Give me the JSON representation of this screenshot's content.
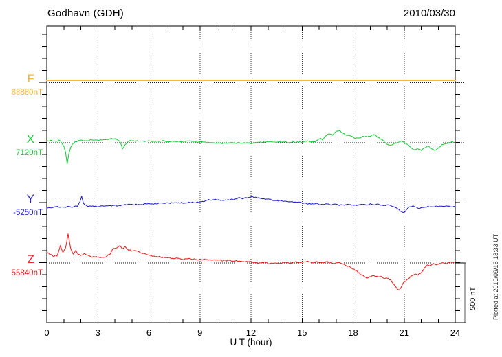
{
  "header": {
    "title": "Godhavn (GDH)",
    "date": "2010/03/30"
  },
  "axes": {
    "xlabel": "U T (hour)",
    "x_ticks": [
      0,
      3,
      6,
      9,
      12,
      15,
      18,
      21,
      24
    ],
    "x_minor_step_hours": 1
  },
  "scalebar": {
    "label": "500 nT",
    "value_nT": 500
  },
  "footer": {
    "plotted_at": "Plotted at 2010/09/16 13:33 UT"
  },
  "chart_data": {
    "type": "line",
    "title": "Godhavn (GDH)",
    "date": "2010/03/30",
    "xlabel": "U T (hour)",
    "x_range": [
      0,
      24
    ],
    "x_ticks": [
      0,
      3,
      6,
      9,
      12,
      15,
      18,
      21,
      24
    ],
    "grid": "dotted vertical at 3h intervals, dotted horizontal baseline per component",
    "legend_position": "left margin labels",
    "scale_bar_nT": 500,
    "minor_tick_nT": 100,
    "series": [
      {
        "name": "F",
        "baseline_label": "88880nT",
        "color": "#FFB832",
        "noise_nT": 0,
        "width": 2,
        "points": [
          [
            0,
            17
          ],
          [
            24,
            17
          ]
        ]
      },
      {
        "name": "X",
        "baseline_label": "7120nT",
        "color": "#20CC40",
        "noise_nT": 6,
        "width": 1.1,
        "points": [
          [
            0,
            8
          ],
          [
            0.3,
            14
          ],
          [
            0.5,
            6
          ],
          [
            0.7,
            20
          ],
          [
            0.85,
            0
          ],
          [
            1.0,
            -30
          ],
          [
            1.1,
            -80
          ],
          [
            1.2,
            -180
          ],
          [
            1.3,
            -90
          ],
          [
            1.4,
            -40
          ],
          [
            1.5,
            -14
          ],
          [
            1.7,
            6
          ],
          [
            2.0,
            17
          ],
          [
            2.3,
            12
          ],
          [
            2.6,
            20
          ],
          [
            3.0,
            17
          ],
          [
            3.3,
            23
          ],
          [
            3.6,
            28
          ],
          [
            3.9,
            32
          ],
          [
            4.1,
            26
          ],
          [
            4.3,
            10
          ],
          [
            4.45,
            -54
          ],
          [
            4.6,
            -20
          ],
          [
            4.8,
            11
          ],
          [
            5.0,
            14
          ],
          [
            5.3,
            10
          ],
          [
            5.6,
            9
          ],
          [
            6.0,
            12
          ],
          [
            6.4,
            8
          ],
          [
            6.8,
            10
          ],
          [
            7.2,
            5
          ],
          [
            7.6,
            8
          ],
          [
            8.0,
            10
          ],
          [
            8.4,
            12
          ],
          [
            8.8,
            6
          ],
          [
            9.2,
            2
          ],
          [
            9.6,
            -2
          ],
          [
            10.0,
            -5
          ],
          [
            10.4,
            -7
          ],
          [
            10.8,
            -4
          ],
          [
            11.2,
            -6
          ],
          [
            11.6,
            -2
          ],
          [
            12.0,
            -4
          ],
          [
            12.4,
            0
          ],
          [
            12.8,
            4
          ],
          [
            13.2,
            8
          ],
          [
            13.5,
            2
          ],
          [
            13.8,
            5
          ],
          [
            14.2,
            1
          ],
          [
            14.6,
            3
          ],
          [
            15.0,
            4
          ],
          [
            15.3,
            16
          ],
          [
            15.5,
            4
          ],
          [
            15.8,
            10
          ],
          [
            16.0,
            35
          ],
          [
            16.2,
            25
          ],
          [
            16.4,
            55
          ],
          [
            16.6,
            75
          ],
          [
            16.8,
            62
          ],
          [
            17.0,
            88
          ],
          [
            17.2,
            100
          ],
          [
            17.4,
            78
          ],
          [
            17.6,
            60
          ],
          [
            17.8,
            55
          ],
          [
            18.0,
            45
          ],
          [
            18.2,
            33
          ],
          [
            18.4,
            40
          ],
          [
            18.6,
            50
          ],
          [
            18.8,
            45
          ],
          [
            19.0,
            55
          ],
          [
            19.2,
            66
          ],
          [
            19.4,
            48
          ],
          [
            19.6,
            30
          ],
          [
            19.8,
            8
          ],
          [
            20.0,
            -12
          ],
          [
            20.2,
            -24
          ],
          [
            20.4,
            -12
          ],
          [
            20.6,
            -2
          ],
          [
            20.8,
            10
          ],
          [
            21.0,
            -2
          ],
          [
            21.2,
            -18
          ],
          [
            21.4,
            -42
          ],
          [
            21.6,
            -62
          ],
          [
            21.8,
            -55
          ],
          [
            22.0,
            -68
          ],
          [
            22.2,
            -45
          ],
          [
            22.4,
            -28
          ],
          [
            22.6,
            -50
          ],
          [
            22.8,
            -68
          ],
          [
            23.0,
            -45
          ],
          [
            23.2,
            -22
          ],
          [
            23.5,
            -10
          ],
          [
            23.8,
            5
          ],
          [
            24,
            2
          ]
        ]
      },
      {
        "name": "Y",
        "baseline_label": "-5250nT",
        "color": "#2525CF",
        "noise_nT": 6,
        "width": 1.1,
        "points": [
          [
            0,
            -46
          ],
          [
            0.3,
            -40
          ],
          [
            0.6,
            -36
          ],
          [
            0.9,
            -40
          ],
          [
            1.2,
            -33
          ],
          [
            1.5,
            -38
          ],
          [
            1.8,
            -32
          ],
          [
            1.95,
            5
          ],
          [
            2.05,
            52
          ],
          [
            2.15,
            -5
          ],
          [
            2.3,
            -25
          ],
          [
            2.5,
            -33
          ],
          [
            2.8,
            -28
          ],
          [
            3.1,
            -32
          ],
          [
            3.4,
            -26
          ],
          [
            3.7,
            -29
          ],
          [
            4.0,
            -22
          ],
          [
            4.3,
            -25
          ],
          [
            4.6,
            -18
          ],
          [
            5.0,
            -15
          ],
          [
            5.4,
            -18
          ],
          [
            5.8,
            -12
          ],
          [
            6.2,
            -10
          ],
          [
            6.6,
            -7
          ],
          [
            7.0,
            -4
          ],
          [
            7.5,
            -1
          ],
          [
            8.0,
            -4
          ],
          [
            8.5,
            0
          ],
          [
            9.0,
            3
          ],
          [
            9.3,
            10
          ],
          [
            9.5,
            22
          ],
          [
            9.7,
            15
          ],
          [
            9.9,
            27
          ],
          [
            10.1,
            21
          ],
          [
            10.4,
            16
          ],
          [
            10.7,
            22
          ],
          [
            11.0,
            28
          ],
          [
            11.3,
            38
          ],
          [
            11.5,
            32
          ],
          [
            11.8,
            42
          ],
          [
            12.0,
            48
          ],
          [
            12.3,
            40
          ],
          [
            12.6,
            34
          ],
          [
            13.0,
            27
          ],
          [
            13.4,
            20
          ],
          [
            13.7,
            14
          ],
          [
            14.0,
            10
          ],
          [
            14.4,
            5
          ],
          [
            14.9,
            0
          ],
          [
            15.2,
            -8
          ],
          [
            15.5,
            -14
          ],
          [
            15.8,
            -8
          ],
          [
            16.1,
            -18
          ],
          [
            16.4,
            -12
          ],
          [
            16.7,
            -20
          ],
          [
            17.0,
            -15
          ],
          [
            17.4,
            -22
          ],
          [
            17.8,
            -16
          ],
          [
            18.2,
            -22
          ],
          [
            18.5,
            -14
          ],
          [
            18.8,
            -20
          ],
          [
            19.0,
            -12
          ],
          [
            19.2,
            -20
          ],
          [
            19.4,
            -10
          ],
          [
            19.6,
            -20
          ],
          [
            19.8,
            -26
          ],
          [
            20.0,
            -20
          ],
          [
            20.3,
            -30
          ],
          [
            20.6,
            -48
          ],
          [
            20.8,
            -72
          ],
          [
            21.0,
            -86
          ],
          [
            21.15,
            -60
          ],
          [
            21.3,
            -38
          ],
          [
            21.5,
            -28
          ],
          [
            21.7,
            -38
          ],
          [
            21.9,
            -48
          ],
          [
            22.1,
            -42
          ],
          [
            22.4,
            -32
          ],
          [
            22.7,
            -38
          ],
          [
            23.0,
            -32
          ],
          [
            23.3,
            -27
          ],
          [
            23.6,
            -33
          ],
          [
            24,
            -32
          ]
        ]
      },
      {
        "name": "Z",
        "baseline_label": "55840nT",
        "color": "#EE2525",
        "noise_nT": 7,
        "width": 1.1,
        "points": [
          [
            0,
            88
          ],
          [
            0.2,
            70
          ],
          [
            0.4,
            52
          ],
          [
            0.6,
            60
          ],
          [
            0.8,
            140
          ],
          [
            0.95,
            85
          ],
          [
            1.1,
            120
          ],
          [
            1.25,
            237
          ],
          [
            1.4,
            120
          ],
          [
            1.55,
            75
          ],
          [
            1.7,
            100
          ],
          [
            1.85,
            70
          ],
          [
            2.0,
            57
          ],
          [
            2.2,
            75
          ],
          [
            2.4,
            60
          ],
          [
            2.7,
            48
          ],
          [
            3.0,
            46
          ],
          [
            3.3,
            40
          ],
          [
            3.5,
            48
          ],
          [
            3.7,
            70
          ],
          [
            3.9,
            115
          ],
          [
            4.1,
            125
          ],
          [
            4.3,
            137
          ],
          [
            4.45,
            120
          ],
          [
            4.6,
            130
          ],
          [
            4.8,
            105
          ],
          [
            5.0,
            100
          ],
          [
            5.3,
            95
          ],
          [
            5.6,
            80
          ],
          [
            5.9,
            65
          ],
          [
            6.2,
            57
          ],
          [
            6.5,
            50
          ],
          [
            6.8,
            46
          ],
          [
            7.1,
            40
          ],
          [
            7.4,
            37
          ],
          [
            7.7,
            34
          ],
          [
            8.0,
            30
          ],
          [
            8.3,
            34
          ],
          [
            8.6,
            28
          ],
          [
            9.0,
            25
          ],
          [
            9.4,
            28
          ],
          [
            9.8,
            22
          ],
          [
            10.2,
            20
          ],
          [
            10.6,
            17
          ],
          [
            11.0,
            14
          ],
          [
            11.4,
            11
          ],
          [
            11.8,
            6
          ],
          [
            12.2,
            0
          ],
          [
            12.5,
            -6
          ],
          [
            12.8,
            3
          ],
          [
            13.1,
            -9
          ],
          [
            13.4,
            0
          ],
          [
            13.7,
            -6
          ],
          [
            14.0,
            3
          ],
          [
            14.3,
            -3
          ],
          [
            14.6,
            6
          ],
          [
            15.0,
            0
          ],
          [
            15.3,
            9
          ],
          [
            15.6,
            0
          ],
          [
            15.9,
            6
          ],
          [
            16.2,
            -3
          ],
          [
            16.5,
            3
          ],
          [
            16.8,
            -6
          ],
          [
            17.1,
            0
          ],
          [
            17.4,
            -9
          ],
          [
            17.6,
            -23
          ],
          [
            17.9,
            -46
          ],
          [
            18.2,
            -69
          ],
          [
            18.5,
            -103
          ],
          [
            18.8,
            -131
          ],
          [
            19.0,
            -114
          ],
          [
            19.2,
            -103
          ],
          [
            19.4,
            -114
          ],
          [
            19.6,
            -120
          ],
          [
            19.8,
            -126
          ],
          [
            20.0,
            -131
          ],
          [
            20.2,
            -149
          ],
          [
            20.4,
            -183
          ],
          [
            20.55,
            -211
          ],
          [
            20.7,
            -229
          ],
          [
            20.85,
            -194
          ],
          [
            21.0,
            -160
          ],
          [
            21.2,
            -137
          ],
          [
            21.4,
            -114
          ],
          [
            21.6,
            -97
          ],
          [
            21.8,
            -103
          ],
          [
            22.0,
            -80
          ],
          [
            22.2,
            -46
          ],
          [
            22.35,
            -17
          ],
          [
            22.5,
            -29
          ],
          [
            22.7,
            -11
          ],
          [
            22.9,
            -17
          ],
          [
            23.1,
            -6
          ],
          [
            23.3,
            0
          ],
          [
            23.5,
            -9
          ],
          [
            23.7,
            0
          ],
          [
            23.9,
            6
          ],
          [
            24,
            3
          ]
        ]
      }
    ]
  }
}
